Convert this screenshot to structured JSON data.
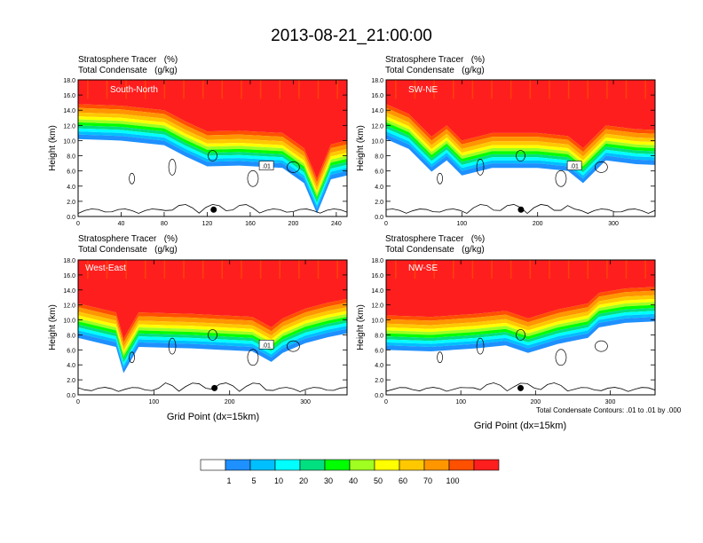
{
  "title": "2013-08-21_21:00:00",
  "panel_title_line1": "Stratosphere Tracer   (%)",
  "panel_title_line2": "Total Condensate   (g/kg)",
  "y_axis_label": "Height (km)",
  "x_axis_label": "Grid Point (dx=15km)",
  "contour_note": "Total Condensate Contours: .01 to .01 by .000",
  "colorbar": {
    "labels": [
      "1",
      "5",
      "10",
      "20",
      "30",
      "40",
      "50",
      "60",
      "70",
      "100"
    ],
    "colors": [
      "#ffffff",
      "#1e90ff",
      "#00bfff",
      "#00ffff",
      "#00e080",
      "#00ff00",
      "#a0ff20",
      "#ffff00",
      "#ffc800",
      "#ff9600",
      "#ff5000",
      "#ff1e1e"
    ]
  },
  "chart_data": [
    {
      "type": "heatmap",
      "label": "South-North",
      "xlim": [
        0,
        250
      ],
      "ylim": [
        0,
        18
      ],
      "xticks": [
        0,
        40,
        80,
        120,
        160,
        200,
        240
      ],
      "yticks": [
        "0.0",
        "2.0",
        "4.0",
        "6.0",
        "8.0",
        "10.0",
        "12.0",
        "14.0",
        "16.0",
        "18.0"
      ],
      "tropopause_km": [
        [
          0,
          14.8
        ],
        [
          40,
          14.6
        ],
        [
          80,
          14.0
        ],
        [
          100,
          12.5
        ],
        [
          120,
          11.2
        ],
        [
          150,
          11.3
        ],
        [
          190,
          11.0
        ],
        [
          210,
          9.0
        ],
        [
          222,
          5.0
        ],
        [
          235,
          9.5
        ],
        [
          250,
          10.0
        ]
      ],
      "contour_label": ".01",
      "marker_x": 126
    },
    {
      "type": "heatmap",
      "label": "SW-NE",
      "xlim": [
        0,
        355
      ],
      "ylim": [
        0,
        18
      ],
      "xticks": [
        0,
        100,
        200,
        300
      ],
      "yticks": [
        "0.0",
        "2.0",
        "4.0",
        "6.0",
        "8.0",
        "10.0",
        "12.0",
        "14.0",
        "16.0",
        "18.0"
      ],
      "tropopause_km": [
        [
          0,
          14.8
        ],
        [
          30,
          13.5
        ],
        [
          60,
          10.5
        ],
        [
          80,
          12.0
        ],
        [
          100,
          10.0
        ],
        [
          140,
          11.0
        ],
        [
          200,
          11.0
        ],
        [
          240,
          10.6
        ],
        [
          260,
          9.0
        ],
        [
          290,
          12.0
        ],
        [
          330,
          11.5
        ],
        [
          355,
          11.4
        ]
      ],
      "contour_label": ".01",
      "marker_x": 178
    },
    {
      "type": "heatmap",
      "label": "West-East",
      "xlim": [
        0,
        355
      ],
      "ylim": [
        0,
        18
      ],
      "xticks": [
        0,
        100,
        200,
        300
      ],
      "yticks": [
        "0.0",
        "2.0",
        "4.0",
        "6.0",
        "8.0",
        "10.0",
        "12.0",
        "14.0",
        "16.0",
        "18.0"
      ],
      "tropopause_km": [
        [
          0,
          12.2
        ],
        [
          50,
          11.0
        ],
        [
          60,
          7.5
        ],
        [
          80,
          11.0
        ],
        [
          150,
          10.8
        ],
        [
          230,
          10.4
        ],
        [
          255,
          9.0
        ],
        [
          270,
          10.2
        ],
        [
          300,
          11.5
        ],
        [
          330,
          12.3
        ],
        [
          355,
          12.8
        ]
      ],
      "contour_label": ".01",
      "marker_x": 180
    },
    {
      "type": "heatmap",
      "label": "NW-SE",
      "xlim": [
        0,
        360
      ],
      "ylim": [
        0,
        18
      ],
      "xticks": [
        0,
        100,
        200,
        300
      ],
      "yticks": [
        "0.0",
        "2.0",
        "4.0",
        "6.0",
        "8.0",
        "10.0",
        "12.0",
        "14.0",
        "16.0",
        "18.0"
      ],
      "tropopause_km": [
        [
          0,
          10.6
        ],
        [
          60,
          10.4
        ],
        [
          120,
          10.8
        ],
        [
          160,
          11.2
        ],
        [
          190,
          10.2
        ],
        [
          230,
          11.4
        ],
        [
          270,
          12.2
        ],
        [
          285,
          13.6
        ],
        [
          320,
          14.2
        ],
        [
          360,
          14.4
        ]
      ],
      "contour_label": "",
      "marker_x": 180
    }
  ]
}
